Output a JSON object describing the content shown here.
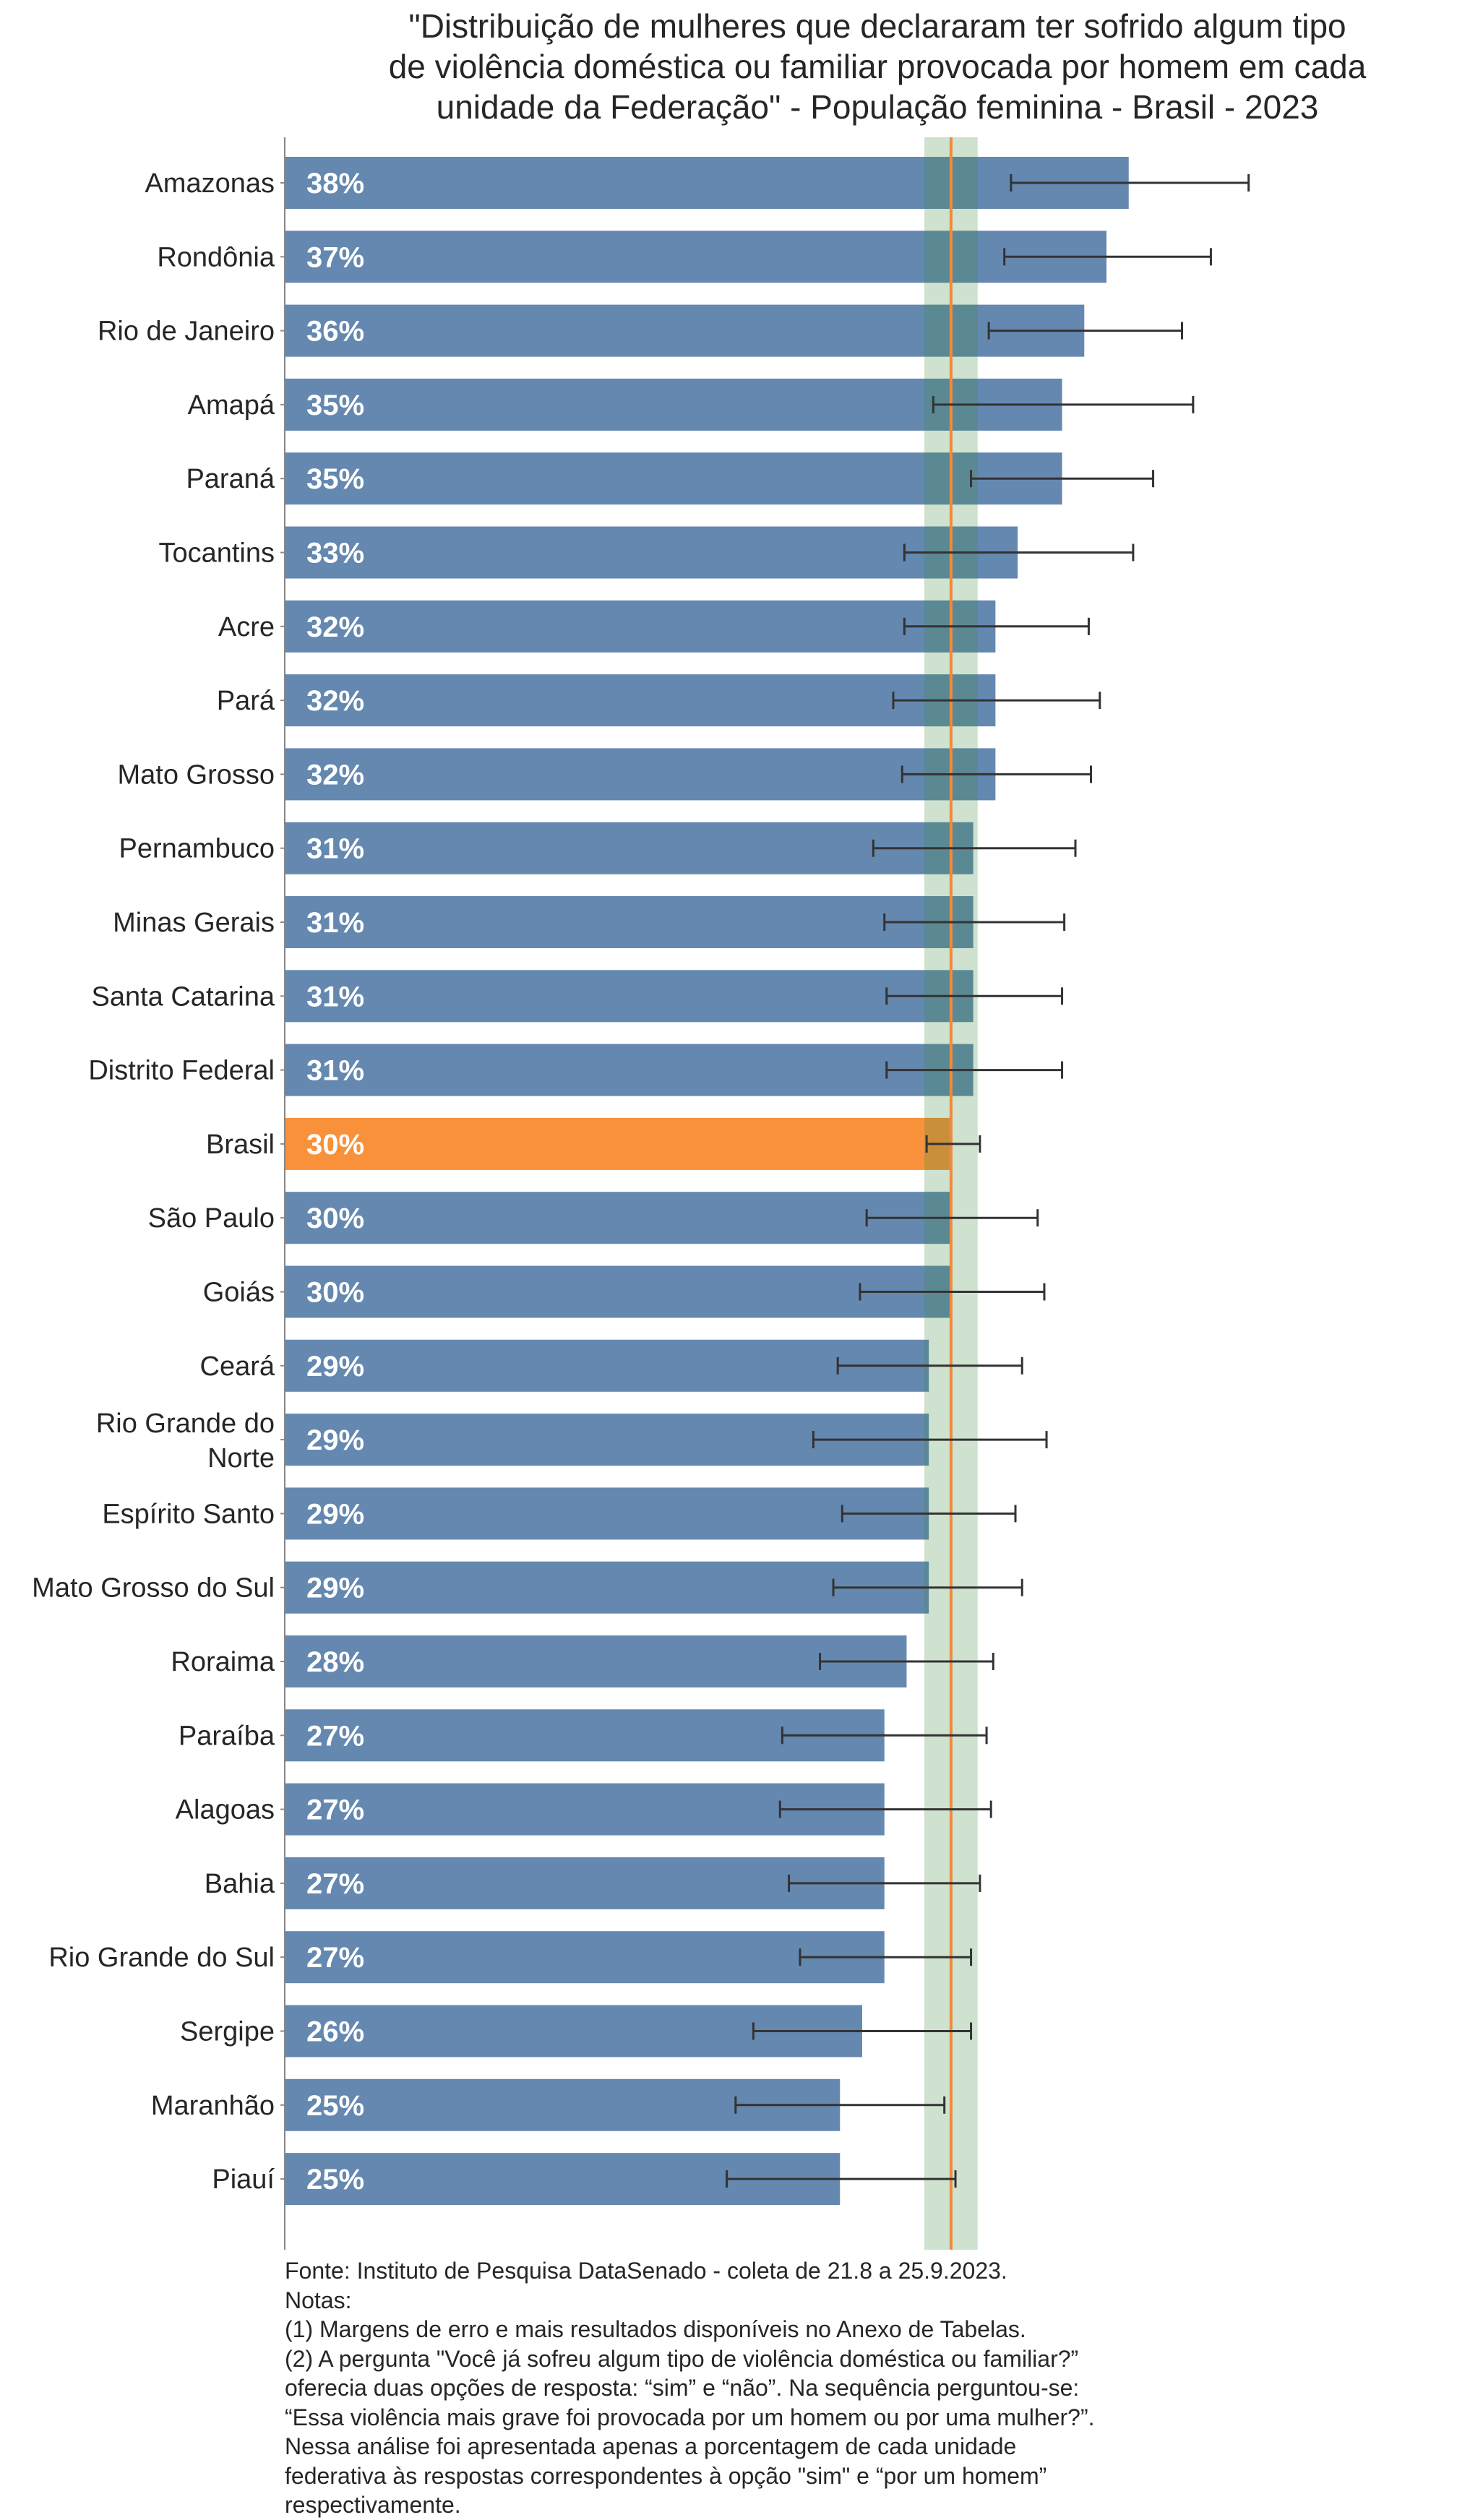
{
  "chart_data": {
    "type": "bar",
    "orientation": "horizontal",
    "title_lines": [
      "\"Distribuição de mulheres que declararam ter sofrido algum tipo",
      "de violência doméstica ou familiar provocada por homem em cada",
      "unidade da Federação\" - População feminina - Brasil - 2023"
    ],
    "categories": [
      "Amazonas",
      "Rondônia",
      "Rio de Janeiro",
      "Amapá",
      "Paraná",
      "Tocantins",
      "Acre",
      "Pará",
      "Mato Grosso",
      "Pernambuco",
      "Minas Gerais",
      "Santa Catarina",
      "Distrito Federal",
      "Brasil",
      "São Paulo",
      "Goiás",
      "Ceará",
      "Rio Grande do Norte",
      "Espírito Santo",
      "Mato Grosso do Sul",
      "Roraima",
      "Paraíba",
      "Alagoas",
      "Bahia",
      "Rio Grande do Sul",
      "Sergipe",
      "Maranhão",
      "Piauí"
    ],
    "values": [
      38,
      37,
      36,
      35,
      35,
      33,
      32,
      32,
      32,
      31,
      31,
      31,
      31,
      30,
      30,
      30,
      29,
      29,
      29,
      29,
      28,
      27,
      27,
      27,
      27,
      26,
      25,
      25
    ],
    "value_labels": [
      "38%",
      "37%",
      "36%",
      "35%",
      "35%",
      "33%",
      "32%",
      "32%",
      "32%",
      "31%",
      "31%",
      "31%",
      "31%",
      "30%",
      "30%",
      "30%",
      "29%",
      "29%",
      "29%",
      "29%",
      "28%",
      "27%",
      "27%",
      "27%",
      "27%",
      "26%",
      "25%",
      "25%"
    ],
    "error_low": [
      32.7,
      32.4,
      31.7,
      29.2,
      30.9,
      27.9,
      27.9,
      27.4,
      27.8,
      26.5,
      27.0,
      27.1,
      27.1,
      28.9,
      26.2,
      25.9,
      24.9,
      23.8,
      25.1,
      24.7,
      24.1,
      22.4,
      22.3,
      22.7,
      23.2,
      21.1,
      20.3,
      19.9
    ],
    "error_high": [
      43.4,
      41.7,
      40.4,
      40.9,
      39.1,
      38.2,
      36.2,
      36.7,
      36.3,
      35.6,
      35.1,
      35.0,
      35.0,
      31.3,
      33.9,
      34.2,
      33.2,
      34.3,
      32.9,
      33.2,
      31.9,
      31.6,
      31.8,
      31.3,
      30.9,
      30.9,
      29.7,
      30.2
    ],
    "highlight_category": "Brasil",
    "reference_line": 30.0,
    "reference_band": [
      28.8,
      31.2
    ],
    "xlim": [
      0,
      60
    ],
    "grid": false,
    "legend": "none",
    "colors": {
      "bar": "#6488b0",
      "highlight": "#f9913a",
      "band": "#3d8c40",
      "reference_line": "#f08a3c",
      "error_bar": "#333333"
    }
  },
  "notes": [
    "Fonte: Instituto de Pesquisa DataSenado - coleta de 21.8 a 25.9.2023.",
    "Notas:",
    "(1) Margens de erro e mais resultados disponíveis no Anexo de Tabelas.",
    "(2) A pergunta \"Você já sofreu algum tipo de violência doméstica ou familiar?”",
    "oferecia duas opções de resposta: “sim” e “não”. Na sequência perguntou-se:",
    "“Essa violência mais grave foi provocada por um homem ou por uma mulher?”.",
    "Nessa análise foi apresentada apenas a porcentagem de cada unidade",
    "federativa às respostas correspondentes à opção \"sim\" e “por um homem”",
    "respectivamente."
  ]
}
